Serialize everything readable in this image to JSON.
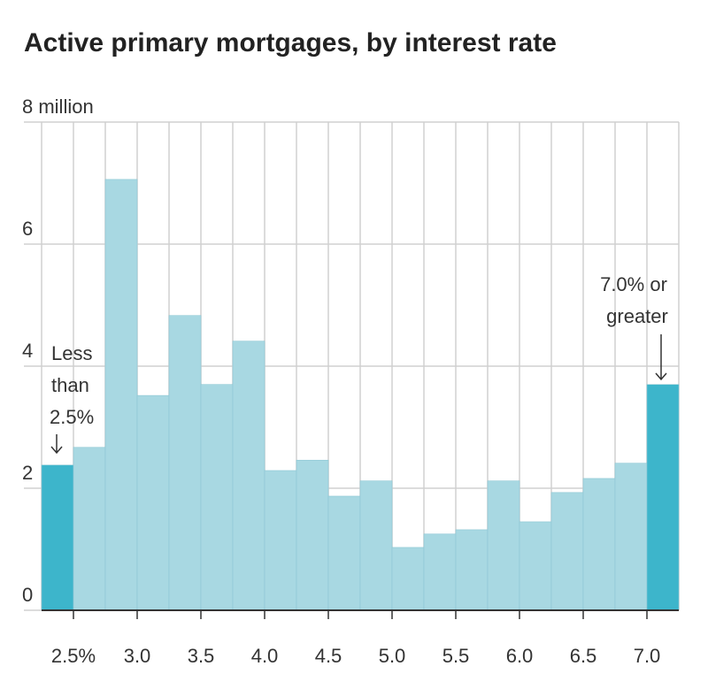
{
  "chart_data": {
    "type": "histogram",
    "title": "Active primary mortgages, by interest rate",
    "bins": [
      2.25,
      2.5,
      2.75,
      3.0,
      3.25,
      3.5,
      3.75,
      4.0,
      4.25,
      4.5,
      4.75,
      5.0,
      5.25,
      5.5,
      5.75,
      6.0,
      6.25,
      6.5,
      6.75,
      7.0,
      7.25
    ],
    "counts": [
      2.38,
      2.67,
      7.06,
      3.52,
      4.83,
      3.7,
      4.41,
      2.29,
      2.46,
      1.87,
      2.12,
      1.03,
      1.25,
      1.32,
      2.12,
      1.45,
      1.93,
      2.16,
      2.41,
      3.7
    ],
    "colors": [
      "#3db5cb",
      "#a8d8e2",
      "#a8d8e2",
      "#a8d8e2",
      "#a8d8e2",
      "#a8d8e2",
      "#a8d8e2",
      "#a8d8e2",
      "#a8d8e2",
      "#a8d8e2",
      "#a8d8e2",
      "#a8d8e2",
      "#a8d8e2",
      "#a8d8e2",
      "#a8d8e2",
      "#a8d8e2",
      "#a8d8e2",
      "#a8d8e2",
      "#a8d8e2",
      "#3db5cb"
    ],
    "xlim": [
      2.25,
      7.25
    ],
    "xticks": [
      {
        "value": 2.5,
        "label": "2.5%"
      },
      {
        "value": 3.0,
        "label": "3.0"
      },
      3.5,
      {
        "value": 4.0,
        "label": "4.0"
      },
      4.5,
      {
        "value": 5.0,
        "label": "5.0"
      },
      5.5,
      {
        "value": 6.0,
        "label": "6.0"
      },
      6.5,
      {
        "value": 7.0,
        "label": "7.0"
      }
    ],
    "ylim": [
      0,
      8
    ],
    "yticks": [
      0,
      2,
      4,
      6,
      {
        "value": 8,
        "label": "8 million"
      }
    ],
    "grid": true,
    "annotations": [
      {
        "lines": [
          "Less",
          "than",
          "2.5%"
        ]
      },
      {
        "lines": [
          "7.0% or",
          "greater"
        ]
      }
    ]
  }
}
